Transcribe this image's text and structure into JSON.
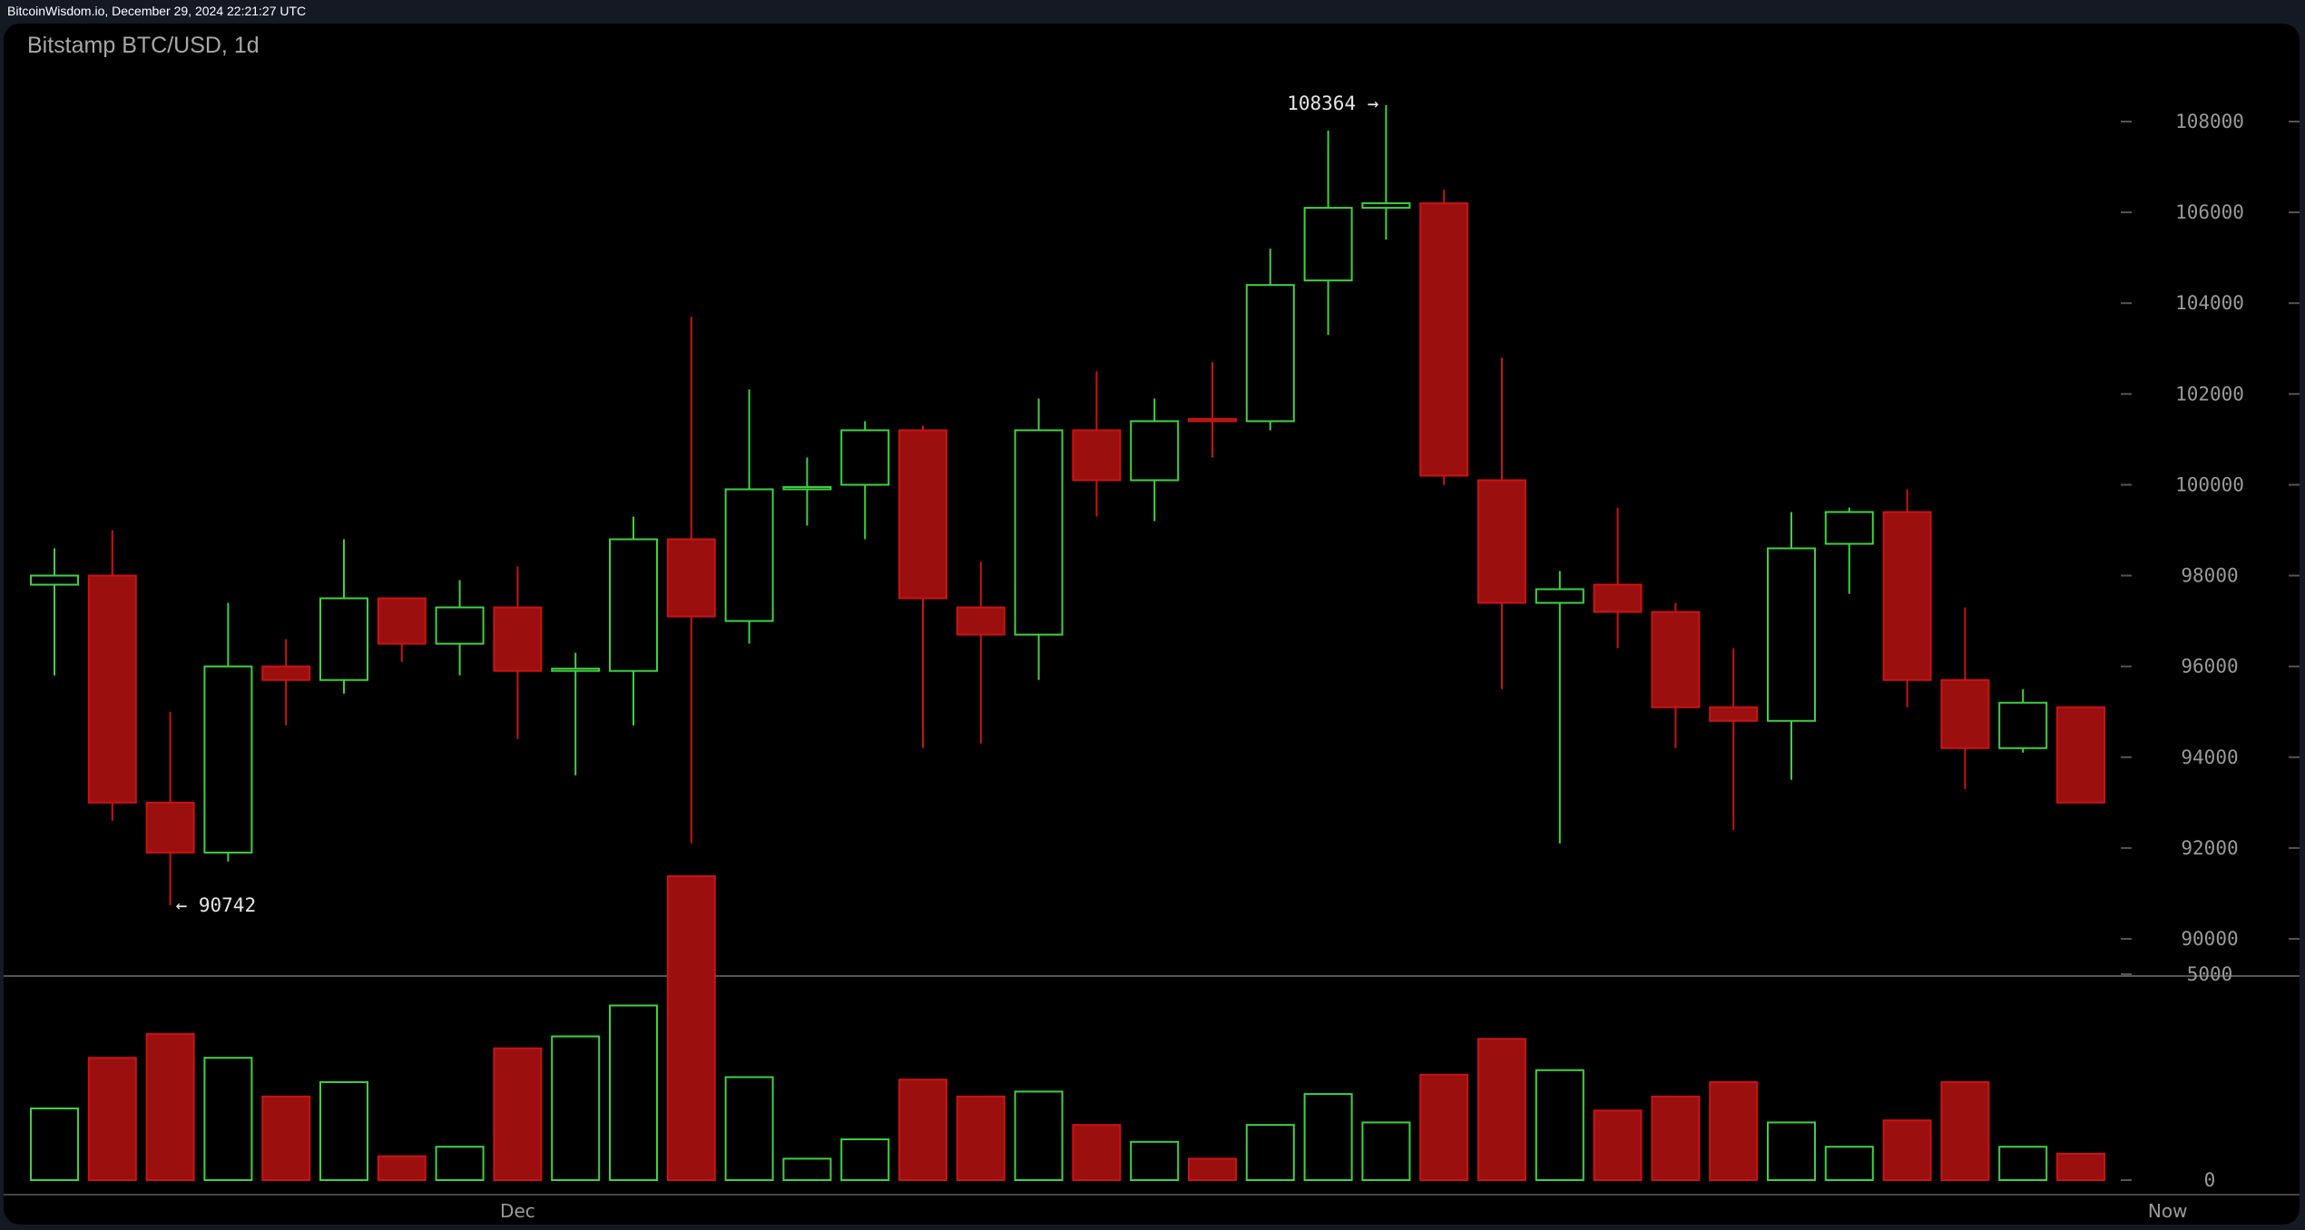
{
  "header": {
    "source": "BitcoinWisdom.io, December 29, 2024 22:21:27 UTC"
  },
  "chart_data": {
    "type": "candlestick",
    "title": "Bitstamp BTC/USD, 1d",
    "colors": {
      "up": "#3fd13f",
      "down": "#c81414",
      "down_fill": "#9b0f0f"
    },
    "price_axis": {
      "ylim": [
        88500,
        109500
      ],
      "ticks": [
        90000,
        92000,
        94000,
        96000,
        98000,
        100000,
        102000,
        104000,
        106000,
        108000
      ]
    },
    "volume_axis": {
      "ylim": [
        0,
        8000
      ],
      "ticks": [
        0,
        5000
      ]
    },
    "x_labels": [
      {
        "index": 8,
        "label": "Dec"
      },
      {
        "index": 36.5,
        "label": "Now"
      }
    ],
    "annotations": {
      "high": {
        "index": 23,
        "value": 108364,
        "label": "108364 →"
      },
      "low": {
        "index": 2,
        "value": 90742,
        "label": "← 90742"
      }
    },
    "candles": [
      {
        "o": 97800,
        "h": 98600,
        "l": 95800,
        "c": 98000,
        "v": 1740
      },
      {
        "o": 98000,
        "h": 99000,
        "l": 92600,
        "c": 93000,
        "v": 2970
      },
      {
        "o": 93000,
        "h": 95000,
        "l": 90742,
        "c": 91900,
        "v": 3550
      },
      {
        "o": 91900,
        "h": 97400,
        "l": 91700,
        "c": 96000,
        "v": 2970
      },
      {
        "o": 96000,
        "h": 96600,
        "l": 94700,
        "c": 95700,
        "v": 2030
      },
      {
        "o": 95700,
        "h": 98800,
        "l": 95400,
        "c": 97500,
        "v": 2380
      },
      {
        "o": 97500,
        "h": 97500,
        "l": 96100,
        "c": 96500,
        "v": 580
      },
      {
        "o": 96500,
        "h": 97900,
        "l": 95800,
        "c": 97300,
        "v": 810
      },
      {
        "o": 97300,
        "h": 98200,
        "l": 94400,
        "c": 95900,
        "v": 3200
      },
      {
        "o": 95900,
        "h": 96300,
        "l": 93600,
        "c": 95950,
        "v": 3490
      },
      {
        "o": 95900,
        "h": 99300,
        "l": 94700,
        "c": 98800,
        "v": 4240
      },
      {
        "o": 98800,
        "h": 103700,
        "l": 92100,
        "c": 97100,
        "v": 7380
      },
      {
        "o": 97000,
        "h": 102100,
        "l": 96500,
        "c": 99900,
        "v": 2500
      },
      {
        "o": 99900,
        "h": 100600,
        "l": 99100,
        "c": 99950,
        "v": 520
      },
      {
        "o": 100000,
        "h": 101400,
        "l": 98800,
        "c": 101200,
        "v": 990
      },
      {
        "o": 101200,
        "h": 101300,
        "l": 94200,
        "c": 97500,
        "v": 2440
      },
      {
        "o": 97300,
        "h": 98300,
        "l": 94300,
        "c": 96700,
        "v": 2030
      },
      {
        "o": 96700,
        "h": 101900,
        "l": 95700,
        "c": 101200,
        "v": 2150
      },
      {
        "o": 101200,
        "h": 102500,
        "l": 99300,
        "c": 100100,
        "v": 1340
      },
      {
        "o": 100100,
        "h": 101900,
        "l": 99200,
        "c": 101400,
        "v": 930
      },
      {
        "o": 101450,
        "h": 102700,
        "l": 100600,
        "c": 101400,
        "v": 520
      },
      {
        "o": 101400,
        "h": 105200,
        "l": 101200,
        "c": 104400,
        "v": 1340
      },
      {
        "o": 104500,
        "h": 107800,
        "l": 103300,
        "c": 106100,
        "v": 2090
      },
      {
        "o": 106100,
        "h": 108364,
        "l": 105400,
        "c": 106200,
        "v": 1400
      },
      {
        "o": 106200,
        "h": 106500,
        "l": 100000,
        "c": 100200,
        "v": 2560
      },
      {
        "o": 100100,
        "h": 102800,
        "l": 95500,
        "c": 97400,
        "v": 3430
      },
      {
        "o": 97400,
        "h": 98100,
        "l": 92100,
        "c": 97700,
        "v": 2670
      },
      {
        "o": 97800,
        "h": 99500,
        "l": 96400,
        "c": 97200,
        "v": 1690
      },
      {
        "o": 97200,
        "h": 97400,
        "l": 94200,
        "c": 95100,
        "v": 2030
      },
      {
        "o": 95100,
        "h": 96400,
        "l": 92400,
        "c": 94800,
        "v": 2380
      },
      {
        "o": 94800,
        "h": 99400,
        "l": 93500,
        "c": 98600,
        "v": 1400
      },
      {
        "o": 98700,
        "h": 99500,
        "l": 97600,
        "c": 99400,
        "v": 810
      },
      {
        "o": 99400,
        "h": 99900,
        "l": 95100,
        "c": 95700,
        "v": 1450
      },
      {
        "o": 95700,
        "h": 97300,
        "l": 93300,
        "c": 94200,
        "v": 2380
      },
      {
        "o": 94200,
        "h": 95500,
        "l": 94100,
        "c": 95200,
        "v": 810
      },
      {
        "o": 95100,
        "h": 95100,
        "l": 93000,
        "c": 93000,
        "v": 640
      }
    ]
  }
}
